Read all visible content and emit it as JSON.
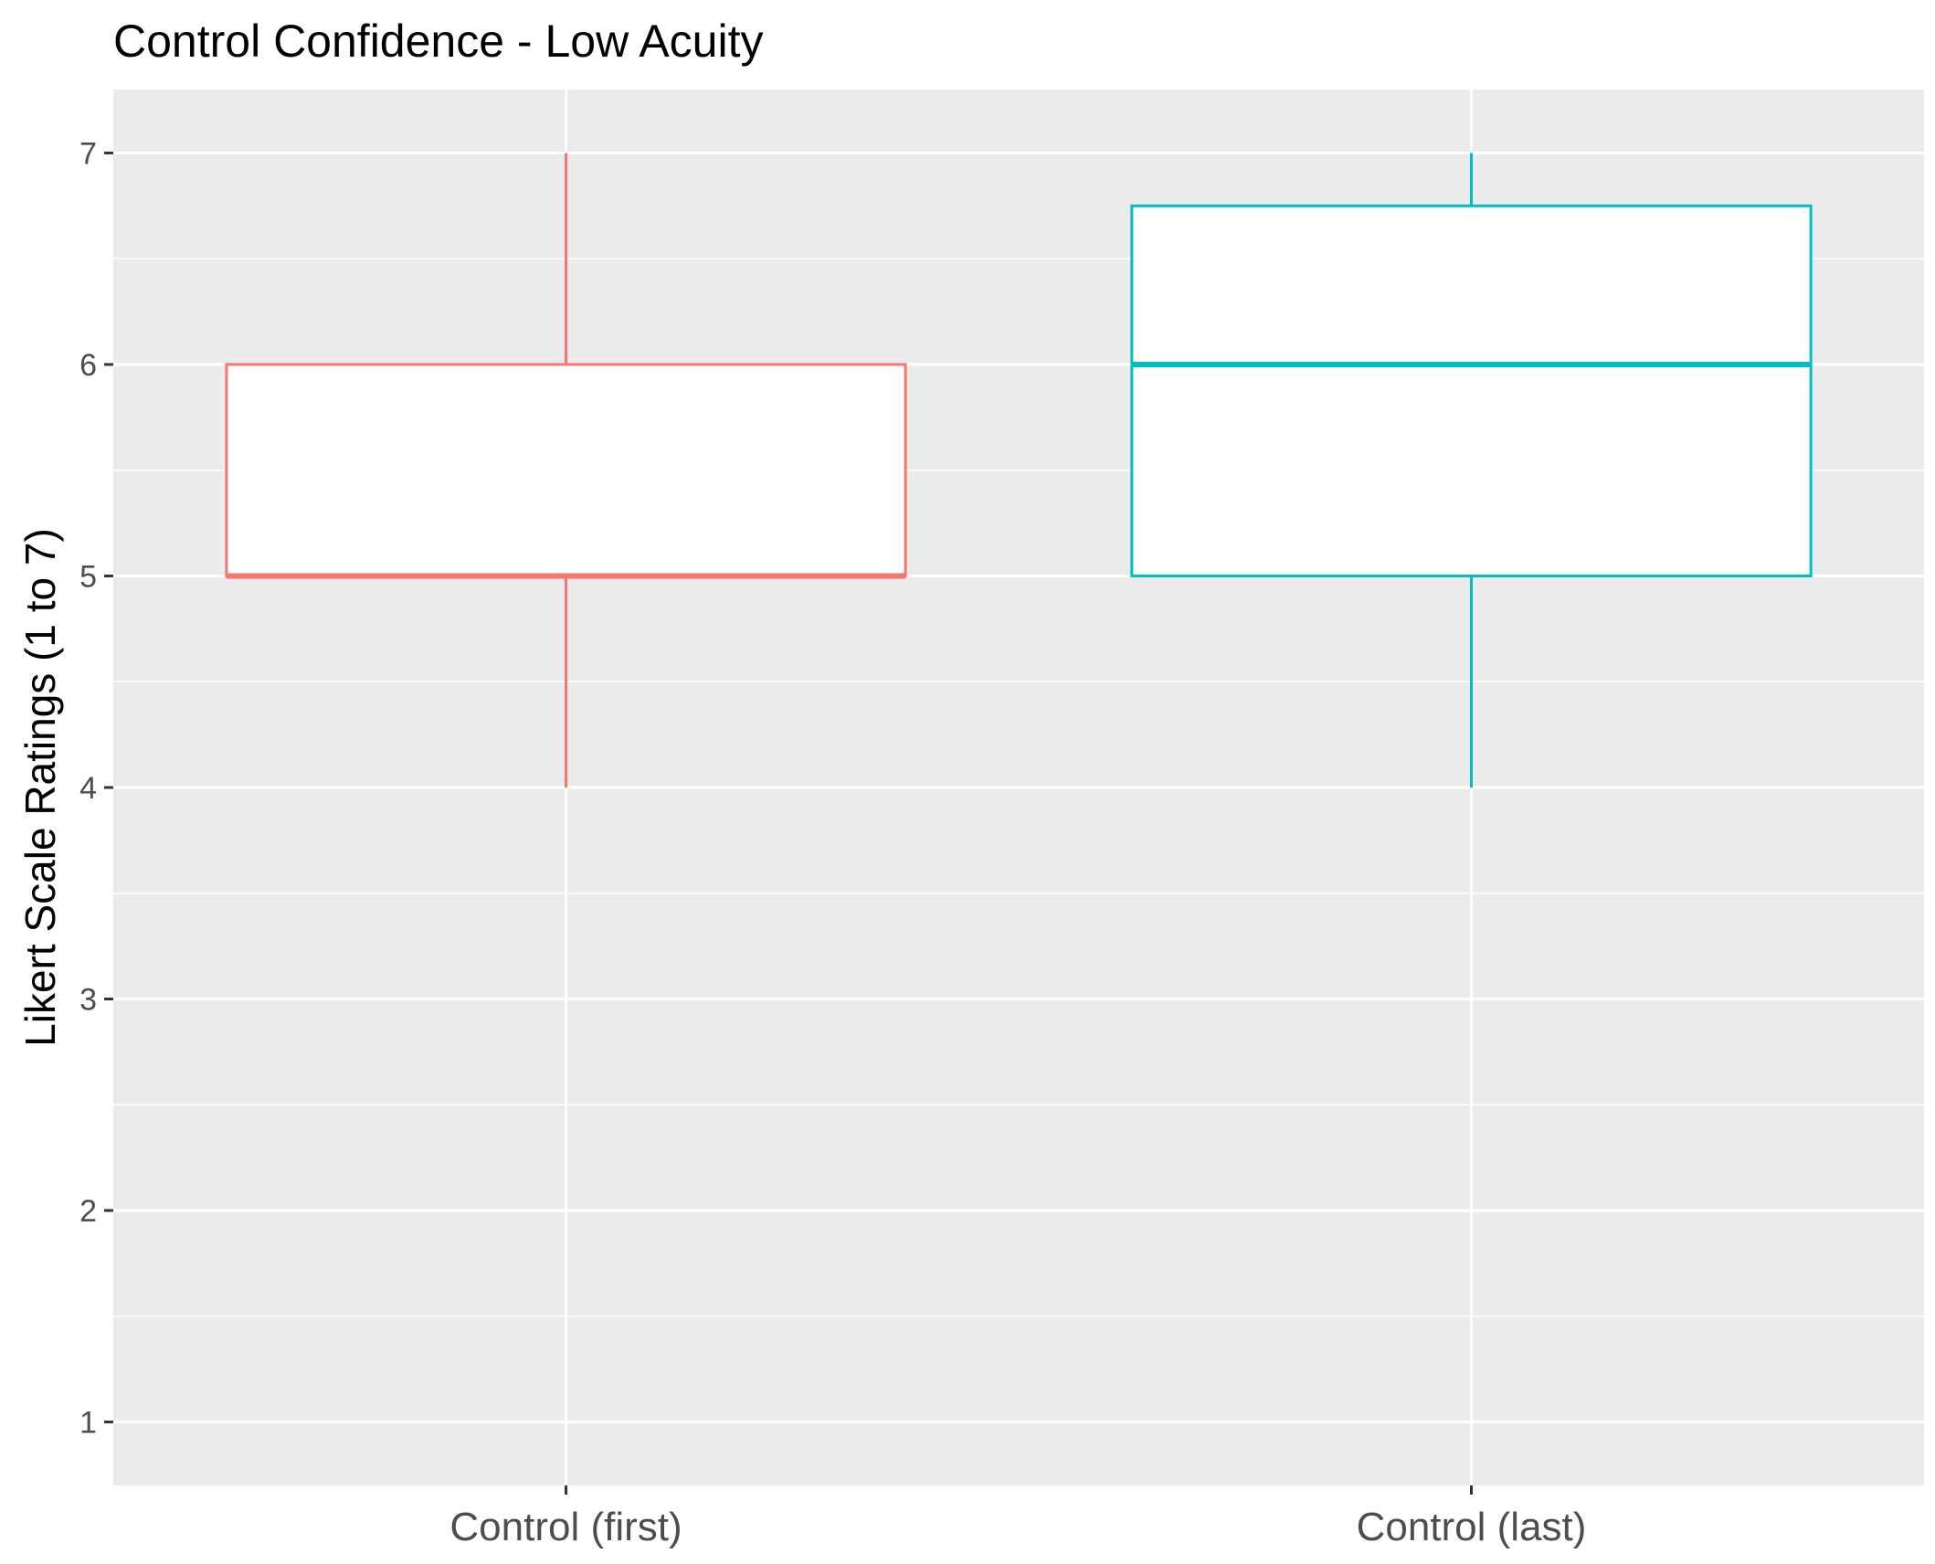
{
  "chart_data": {
    "type": "box",
    "title": "Control Confidence - Low Acuity",
    "xlabel": "",
    "ylabel": "Likert Scale Ratings (1 to 7)",
    "ylim": [
      0.7,
      7.3
    ],
    "yticks": [
      1,
      2,
      3,
      4,
      5,
      6,
      7
    ],
    "grid": true,
    "legend": "none",
    "categories": [
      "Control (first)",
      "Control (last)"
    ],
    "boxes": [
      {
        "category": "Control (first)",
        "min": 4,
        "q1": 5,
        "median": 5,
        "q3": 6,
        "max": 7,
        "color": "#f8766d"
      },
      {
        "category": "Control (last)",
        "min": 4,
        "q1": 5,
        "median": 6,
        "q3": 6.75,
        "max": 7,
        "color": "#00bfc4"
      }
    ],
    "panel_background": "#ebebeb",
    "grid_color": "#ffffff"
  }
}
